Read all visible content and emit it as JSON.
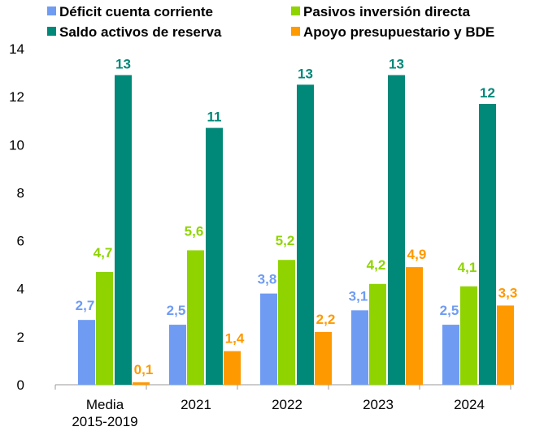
{
  "chart_data": {
    "type": "bar",
    "categories": [
      "Media\n2015-2019",
      "2021",
      "2022",
      "2023",
      "2024"
    ],
    "series": [
      {
        "name": "Déficit cuenta corriente",
        "color": "#6f9cf2",
        "values": [
          2.7,
          2.5,
          3.8,
          3.1,
          2.5
        ],
        "labels": [
          "2,7",
          "2,5",
          "3,8",
          "3,1",
          "2,5"
        ]
      },
      {
        "name": "Pasivos inversión directa",
        "color": "#8fd400",
        "values": [
          4.7,
          5.6,
          5.2,
          4.2,
          4.1
        ],
        "labels": [
          "4,7",
          "5,6",
          "5,2",
          "4,2",
          "4,1"
        ]
      },
      {
        "name": "Saldo activos de reserva",
        "color": "#008878",
        "values": [
          12.9,
          10.7,
          12.5,
          12.9,
          11.7
        ],
        "labels": [
          "13",
          "11",
          "13",
          "13",
          "12"
        ]
      },
      {
        "name": "Apoyo presupuestario y BDE",
        "color": "#ff9900",
        "values": [
          0.1,
          1.4,
          2.2,
          4.9,
          3.3
        ],
        "labels": [
          "0,1",
          "1,4",
          "2,2",
          "4,9",
          "3,3"
        ]
      }
    ],
    "yticks": [
      "0",
      "2",
      "4",
      "6",
      "8",
      "10",
      "12",
      "14"
    ],
    "ylim": [
      0,
      14
    ],
    "legend_position": "top",
    "grid": false
  }
}
